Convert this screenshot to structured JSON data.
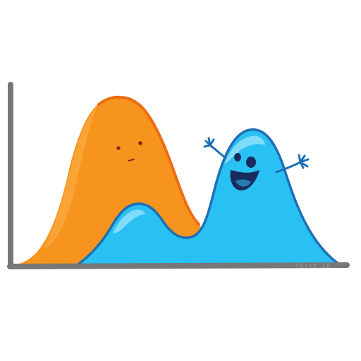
{
  "illustration": {
    "signature": "forst 18",
    "colors": {
      "axis": "#777777",
      "orange_fill": "#f7941d",
      "orange_edge": "#ef6c10",
      "orange_highlight": "#fbb04a",
      "blue_fill": "#29c0f3",
      "blue_edge": "#1e6fb5",
      "blue_highlight": "#8ee0fb",
      "face": "#1a2b5e",
      "tongue": "#29c0f3",
      "orange_face": "#7a2a10"
    },
    "characters": [
      {
        "name": "orange-hump",
        "mood": "neutral"
      },
      {
        "name": "blue-bimodal",
        "mood": "happy",
        "pose": "arms-up"
      }
    ],
    "icons": [
      "orange-hump-face-icon",
      "blue-blob-face-icon",
      "hand-icon"
    ]
  }
}
